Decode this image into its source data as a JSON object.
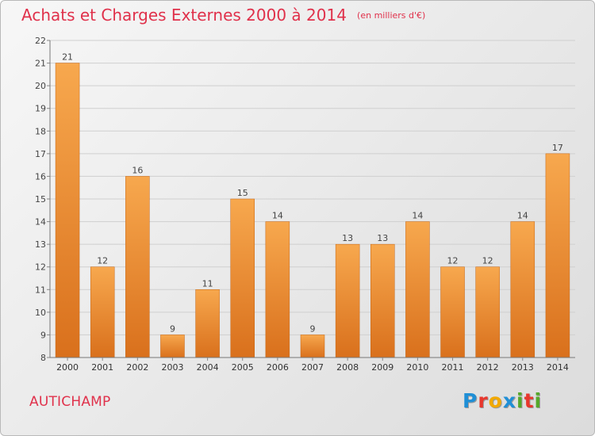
{
  "header": {
    "title": "Achats et Charges Externes 2000 à 2014",
    "subtitle": "(en milliers d'€)"
  },
  "footer": {
    "commune": "AUTICHAMP",
    "logo": {
      "letters": [
        "P",
        "r",
        "o",
        "x",
        "i",
        "t",
        "i"
      ],
      "colors": [
        "#1f8fd6",
        "#e8372d",
        "#f2a900",
        "#1f8fd6",
        "#55a82a",
        "#e8372d",
        "#55a82a"
      ]
    }
  },
  "chart_data": {
    "type": "bar",
    "categories": [
      "2000",
      "2001",
      "2002",
      "2003",
      "2004",
      "2005",
      "2006",
      "2007",
      "2008",
      "2009",
      "2010",
      "2011",
      "2012",
      "2013",
      "2014"
    ],
    "series": [
      {
        "values": [
          21,
          12,
          16,
          9,
          11,
          15,
          14,
          9,
          13,
          13,
          14,
          12,
          12,
          14,
          17
        ]
      }
    ],
    "ylim": [
      8,
      22
    ],
    "yticks": [
      8,
      9,
      10,
      11,
      12,
      13,
      14,
      15,
      16,
      17,
      18,
      19,
      20,
      21,
      22
    ],
    "grid": true,
    "bar_color_top": "#f7a84e",
    "bar_color_bottom": "#d9701c"
  }
}
